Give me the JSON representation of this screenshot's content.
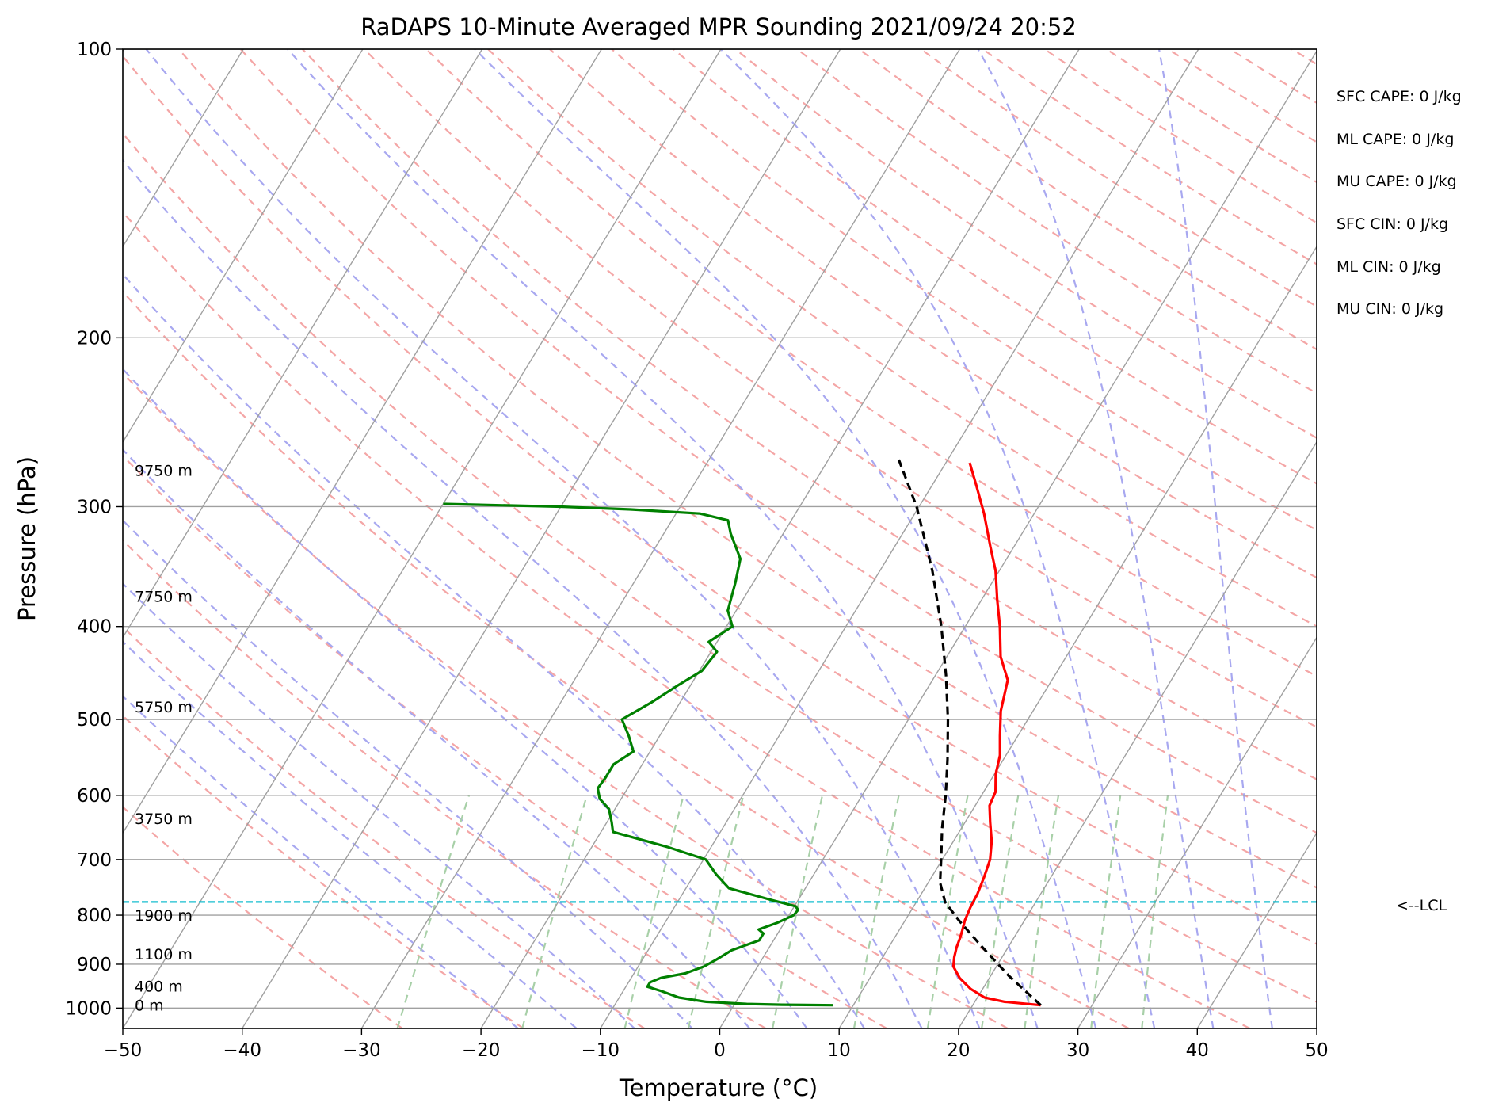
{
  "chart_data": {
    "type": "line",
    "title": "RaDAPS 10-Minute Averaged MPR Sounding 2021/09/24 20:52",
    "xlabel": "Temperature (°C)",
    "ylabel": "Pressure (hPa)",
    "xlim": [
      -50,
      50
    ],
    "ylim": [
      1050,
      100
    ],
    "y_scale": "log",
    "grid": true,
    "x_ticks": [
      -50,
      -40,
      -30,
      -20,
      -10,
      0,
      10,
      20,
      30,
      40,
      50
    ],
    "x_tick_labels": [
      "−50",
      "−40",
      "−30",
      "−20",
      "−10",
      "0",
      "10",
      "20",
      "30",
      "40",
      "50"
    ],
    "y_ticks": [
      100,
      200,
      300,
      400,
      500,
      600,
      700,
      800,
      900,
      1000
    ],
    "y_tick_labels": [
      "100",
      "200",
      "300",
      "400",
      "500",
      "600",
      "700",
      "800",
      "900",
      "1000"
    ],
    "skew_colors": {
      "isotherm": "#a0a0a0",
      "dry_adiabat": "#f4a6a6",
      "moist_adiabat": "#a8a8f0",
      "mixing_ratio": "#a8d0a8",
      "lcl_line": "#17becf"
    },
    "series": [
      {
        "key": "temperature",
        "color": "#ff0000",
        "points": [
          [
            993,
            25.7
          ],
          [
            985,
            22.5
          ],
          [
            975,
            20.6
          ],
          [
            955,
            19.0
          ],
          [
            930,
            17.5
          ],
          [
            905,
            16.4
          ],
          [
            885,
            16.0
          ],
          [
            865,
            15.7
          ],
          [
            845,
            15.5
          ],
          [
            830,
            15.3
          ],
          [
            810,
            15.0
          ],
          [
            785,
            14.8
          ],
          [
            760,
            14.7
          ],
          [
            730,
            14.4
          ],
          [
            700,
            14.0
          ],
          [
            670,
            13.2
          ],
          [
            640,
            12.1
          ],
          [
            615,
            11.2
          ],
          [
            595,
            11.0
          ],
          [
            570,
            10.1
          ],
          [
            545,
            9.5
          ],
          [
            520,
            8.5
          ],
          [
            490,
            7.3
          ],
          [
            455,
            6.3
          ],
          [
            430,
            4.5
          ],
          [
            400,
            2.9
          ],
          [
            375,
            1.3
          ],
          [
            350,
            -0.3
          ],
          [
            330,
            -2.0
          ],
          [
            305,
            -4.2
          ],
          [
            285,
            -6.3
          ],
          [
            270,
            -8.0
          ]
        ]
      },
      {
        "key": "dewpoint",
        "color": "#008000",
        "points": [
          [
            993,
            8.3
          ],
          [
            992,
            4.0
          ],
          [
            990,
            1.0
          ],
          [
            985,
            -2.5
          ],
          [
            975,
            -5.0
          ],
          [
            960,
            -6.8
          ],
          [
            950,
            -8.2
          ],
          [
            940,
            -8.2
          ],
          [
            930,
            -7.5
          ],
          [
            920,
            -5.7
          ],
          [
            905,
            -4.5
          ],
          [
            890,
            -3.8
          ],
          [
            870,
            -3.0
          ],
          [
            850,
            -1.2
          ],
          [
            836,
            -1.2
          ],
          [
            828,
            -1.8
          ],
          [
            815,
            -0.6
          ],
          [
            800,
            0.4
          ],
          [
            790,
            0.5
          ],
          [
            783,
            0.1
          ],
          [
            770,
            -2.5
          ],
          [
            750,
            -6.4
          ],
          [
            725,
            -8.2
          ],
          [
            700,
            -9.8
          ],
          [
            680,
            -13.5
          ],
          [
            655,
            -19.0
          ],
          [
            640,
            -19.6
          ],
          [
            620,
            -20.5
          ],
          [
            605,
            -21.8
          ],
          [
            590,
            -22.5
          ],
          [
            575,
            -22.4
          ],
          [
            557,
            -22.4
          ],
          [
            540,
            -21.4
          ],
          [
            520,
            -22.6
          ],
          [
            500,
            -24.0
          ],
          [
            480,
            -22.4
          ],
          [
            460,
            -21.0
          ],
          [
            445,
            -19.8
          ],
          [
            425,
            -19.5
          ],
          [
            415,
            -20.7
          ],
          [
            400,
            -19.5
          ],
          [
            385,
            -20.7
          ],
          [
            360,
            -21.5
          ],
          [
            340,
            -22.3
          ],
          [
            320,
            -24.4
          ],
          [
            310,
            -25.3
          ],
          [
            305,
            -28.0
          ],
          [
            302,
            -34.0
          ],
          [
            300,
            -40.0
          ],
          [
            298,
            -50.0
          ]
        ]
      },
      {
        "key": "parcel",
        "color": "#000000",
        "dashed": true,
        "points": [
          [
            993,
            25.7
          ],
          [
            925,
            21.5
          ],
          [
            860,
            17.6
          ],
          [
            810,
            14.5
          ],
          [
            775,
            12.4
          ],
          [
            740,
            11.0
          ],
          [
            700,
            9.9
          ],
          [
            650,
            8.4
          ],
          [
            600,
            7.0
          ],
          [
            550,
            5.3
          ],
          [
            500,
            3.3
          ],
          [
            450,
            0.9
          ],
          [
            400,
            -2.0
          ],
          [
            350,
            -5.6
          ],
          [
            300,
            -10.2
          ],
          [
            268,
            -14.1
          ]
        ]
      }
    ],
    "lcl_pressure": 775,
    "lcl_label": "<--LCL",
    "height_labels": [
      {
        "text": "0 m",
        "p": 993
      },
      {
        "text": "400 m",
        "p": 948
      },
      {
        "text": "1100 m",
        "p": 878
      },
      {
        "text": "1900 m",
        "p": 800
      },
      {
        "text": "3750 m",
        "p": 634
      },
      {
        "text": "5750 m",
        "p": 485
      },
      {
        "text": "7750 m",
        "p": 372
      },
      {
        "text": "9750 m",
        "p": 275
      }
    ],
    "stats": [
      "SFC CAPE: 0 J/kg",
      "ML CAPE: 0 J/kg",
      "MU CAPE: 0 J/kg",
      "SFC CIN: 0 J/kg",
      "ML CIN: 0 J/kg",
      "MU CIN: 0 J/kg"
    ]
  }
}
